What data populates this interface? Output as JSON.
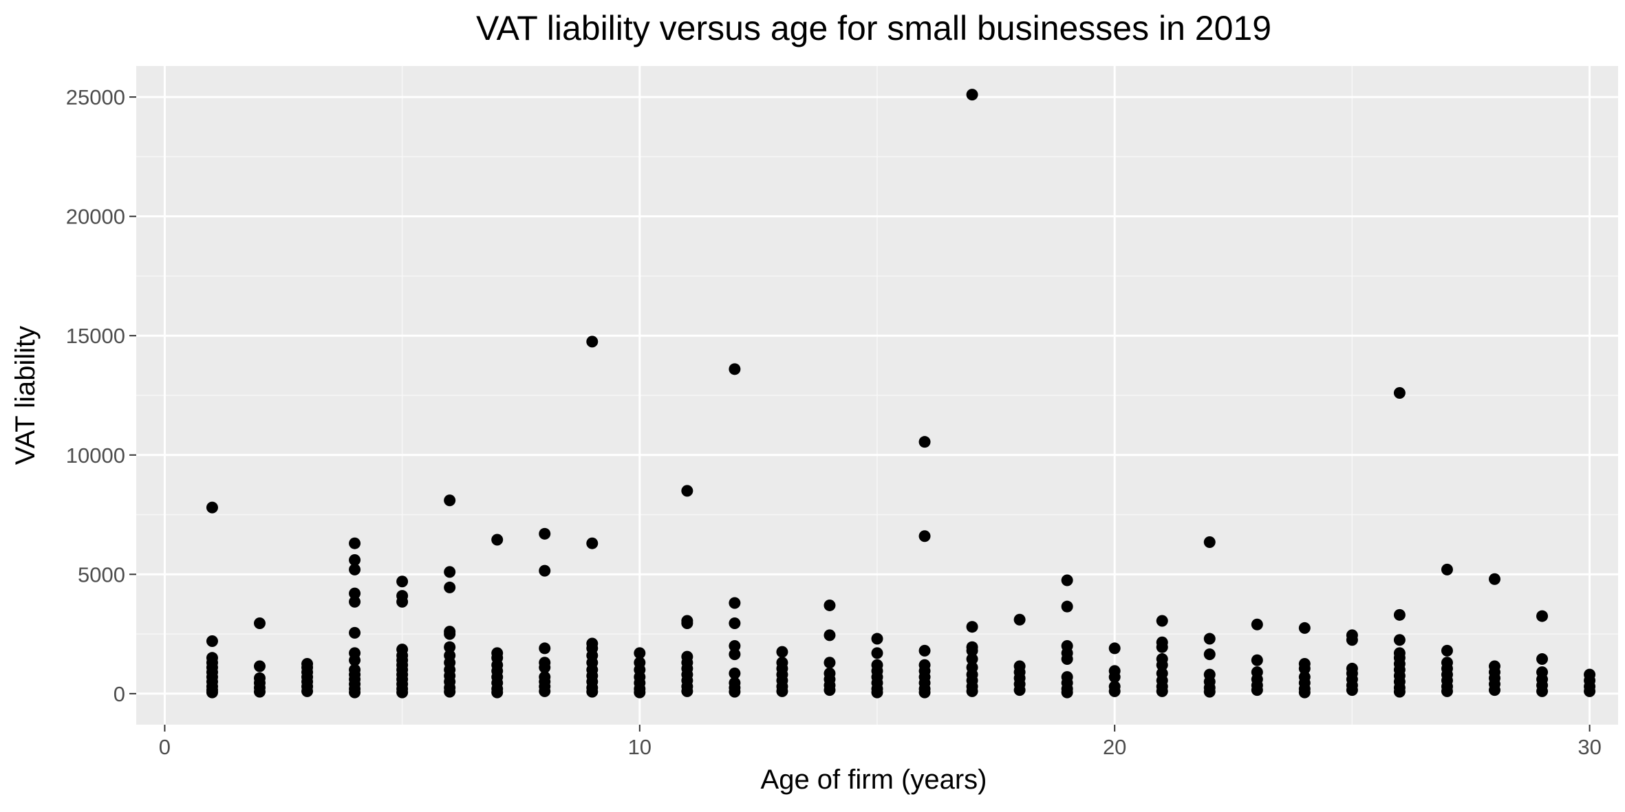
{
  "chart_data": {
    "type": "scatter",
    "title": "VAT liability versus age for small businesses in 2019",
    "xlabel": "Age of firm (years)",
    "ylabel": "VAT liability",
    "xlim": [
      -0.6,
      30.6
    ],
    "ylim": [
      -1300,
      26300
    ],
    "x_major_ticks": [
      0,
      10,
      20,
      30
    ],
    "x_tick_labels": [
      "0",
      "10",
      "20",
      "30"
    ],
    "x_minor_ticks": [
      5,
      15,
      25
    ],
    "y_major_ticks": [
      0,
      5000,
      10000,
      15000,
      20000,
      25000
    ],
    "y_tick_labels": [
      "0",
      "5000",
      "10000",
      "15000",
      "20000",
      "25000"
    ],
    "y_minor_ticks": [
      2500,
      7500,
      12500,
      17500,
      22500
    ],
    "grid": true,
    "colors": {
      "panel_background": "#ebebeb",
      "grid_major": "#ffffff",
      "grid_minor": "#f7f7f7",
      "point": "#000000",
      "tick_mark": "#333333",
      "tick_label": "#4d4d4d"
    },
    "series": [
      {
        "name": "firms",
        "points": [
          {
            "x": 1,
            "y": 7800
          },
          {
            "x": 1,
            "y": 2200
          },
          {
            "x": 1,
            "y": 1500
          },
          {
            "x": 1,
            "y": 1300
          },
          {
            "x": 1,
            "y": 1100
          },
          {
            "x": 1,
            "y": 900
          },
          {
            "x": 1,
            "y": 700
          },
          {
            "x": 1,
            "y": 500
          },
          {
            "x": 1,
            "y": 300
          },
          {
            "x": 1,
            "y": 150
          },
          {
            "x": 1,
            "y": 50
          },
          {
            "x": 2,
            "y": 2950
          },
          {
            "x": 2,
            "y": 1150
          },
          {
            "x": 2,
            "y": 650
          },
          {
            "x": 2,
            "y": 450
          },
          {
            "x": 2,
            "y": 250
          },
          {
            "x": 2,
            "y": 80
          },
          {
            "x": 3,
            "y": 1250
          },
          {
            "x": 3,
            "y": 1100
          },
          {
            "x": 3,
            "y": 900
          },
          {
            "x": 3,
            "y": 700
          },
          {
            "x": 3,
            "y": 500
          },
          {
            "x": 3,
            "y": 300
          },
          {
            "x": 3,
            "y": 100
          },
          {
            "x": 4,
            "y": 6300
          },
          {
            "x": 4,
            "y": 5600
          },
          {
            "x": 4,
            "y": 5200
          },
          {
            "x": 4,
            "y": 4200
          },
          {
            "x": 4,
            "y": 3850
          },
          {
            "x": 4,
            "y": 2550
          },
          {
            "x": 4,
            "y": 1700
          },
          {
            "x": 4,
            "y": 1400
          },
          {
            "x": 4,
            "y": 1000
          },
          {
            "x": 4,
            "y": 800
          },
          {
            "x": 4,
            "y": 600
          },
          {
            "x": 4,
            "y": 400
          },
          {
            "x": 4,
            "y": 200
          },
          {
            "x": 4,
            "y": 50
          },
          {
            "x": 5,
            "y": 4700
          },
          {
            "x": 5,
            "y": 4100
          },
          {
            "x": 5,
            "y": 3850
          },
          {
            "x": 5,
            "y": 1850
          },
          {
            "x": 5,
            "y": 1600
          },
          {
            "x": 5,
            "y": 1400
          },
          {
            "x": 5,
            "y": 1200
          },
          {
            "x": 5,
            "y": 1000
          },
          {
            "x": 5,
            "y": 800
          },
          {
            "x": 5,
            "y": 600
          },
          {
            "x": 5,
            "y": 400
          },
          {
            "x": 5,
            "y": 200
          },
          {
            "x": 5,
            "y": 50
          },
          {
            "x": 6,
            "y": 8100
          },
          {
            "x": 6,
            "y": 5100
          },
          {
            "x": 6,
            "y": 4450
          },
          {
            "x": 6,
            "y": 2600
          },
          {
            "x": 6,
            "y": 2500
          },
          {
            "x": 6,
            "y": 1950
          },
          {
            "x": 6,
            "y": 1600
          },
          {
            "x": 6,
            "y": 1300
          },
          {
            "x": 6,
            "y": 1000
          },
          {
            "x": 6,
            "y": 750
          },
          {
            "x": 6,
            "y": 500
          },
          {
            "x": 6,
            "y": 250
          },
          {
            "x": 6,
            "y": 80
          },
          {
            "x": 7,
            "y": 6450
          },
          {
            "x": 7,
            "y": 1700
          },
          {
            "x": 7,
            "y": 1500
          },
          {
            "x": 7,
            "y": 1200
          },
          {
            "x": 7,
            "y": 950
          },
          {
            "x": 7,
            "y": 700
          },
          {
            "x": 7,
            "y": 450
          },
          {
            "x": 7,
            "y": 200
          },
          {
            "x": 7,
            "y": 50
          },
          {
            "x": 8,
            "y": 6700
          },
          {
            "x": 8,
            "y": 5150
          },
          {
            "x": 8,
            "y": 1900
          },
          {
            "x": 8,
            "y": 1300
          },
          {
            "x": 8,
            "y": 1100
          },
          {
            "x": 8,
            "y": 700
          },
          {
            "x": 8,
            "y": 500
          },
          {
            "x": 8,
            "y": 300
          },
          {
            "x": 8,
            "y": 100
          },
          {
            "x": 9,
            "y": 14750
          },
          {
            "x": 9,
            "y": 6300
          },
          {
            "x": 9,
            "y": 2100
          },
          {
            "x": 9,
            "y": 1900
          },
          {
            "x": 9,
            "y": 1600
          },
          {
            "x": 9,
            "y": 1300
          },
          {
            "x": 9,
            "y": 1000
          },
          {
            "x": 9,
            "y": 750
          },
          {
            "x": 9,
            "y": 500
          },
          {
            "x": 9,
            "y": 250
          },
          {
            "x": 9,
            "y": 80
          },
          {
            "x": 10,
            "y": 1700
          },
          {
            "x": 10,
            "y": 1300
          },
          {
            "x": 10,
            "y": 1000
          },
          {
            "x": 10,
            "y": 700
          },
          {
            "x": 10,
            "y": 450
          },
          {
            "x": 10,
            "y": 200
          },
          {
            "x": 10,
            "y": 50
          },
          {
            "x": 11,
            "y": 8500
          },
          {
            "x": 11,
            "y": 3050
          },
          {
            "x": 11,
            "y": 2950
          },
          {
            "x": 11,
            "y": 1550
          },
          {
            "x": 11,
            "y": 1300
          },
          {
            "x": 11,
            "y": 1050
          },
          {
            "x": 11,
            "y": 800
          },
          {
            "x": 11,
            "y": 550
          },
          {
            "x": 11,
            "y": 300
          },
          {
            "x": 11,
            "y": 100
          },
          {
            "x": 12,
            "y": 13600
          },
          {
            "x": 12,
            "y": 3800
          },
          {
            "x": 12,
            "y": 2950
          },
          {
            "x": 12,
            "y": 2000
          },
          {
            "x": 12,
            "y": 1650
          },
          {
            "x": 12,
            "y": 850
          },
          {
            "x": 12,
            "y": 450
          },
          {
            "x": 12,
            "y": 250
          },
          {
            "x": 12,
            "y": 80
          },
          {
            "x": 13,
            "y": 1750
          },
          {
            "x": 13,
            "y": 1300
          },
          {
            "x": 13,
            "y": 1050
          },
          {
            "x": 13,
            "y": 800
          },
          {
            "x": 13,
            "y": 550
          },
          {
            "x": 13,
            "y": 300
          },
          {
            "x": 13,
            "y": 100
          },
          {
            "x": 14,
            "y": 3700
          },
          {
            "x": 14,
            "y": 2450
          },
          {
            "x": 14,
            "y": 1300
          },
          {
            "x": 14,
            "y": 850
          },
          {
            "x": 14,
            "y": 600
          },
          {
            "x": 14,
            "y": 350
          },
          {
            "x": 14,
            "y": 150
          },
          {
            "x": 15,
            "y": 2300
          },
          {
            "x": 15,
            "y": 1700
          },
          {
            "x": 15,
            "y": 1200
          },
          {
            "x": 15,
            "y": 950
          },
          {
            "x": 15,
            "y": 700
          },
          {
            "x": 15,
            "y": 450
          },
          {
            "x": 15,
            "y": 200
          },
          {
            "x": 15,
            "y": 50
          },
          {
            "x": 16,
            "y": 10550
          },
          {
            "x": 16,
            "y": 6600
          },
          {
            "x": 16,
            "y": 1800
          },
          {
            "x": 16,
            "y": 1200
          },
          {
            "x": 16,
            "y": 950
          },
          {
            "x": 16,
            "y": 700
          },
          {
            "x": 16,
            "y": 450
          },
          {
            "x": 16,
            "y": 200
          },
          {
            "x": 16,
            "y": 50
          },
          {
            "x": 17,
            "y": 25100
          },
          {
            "x": 17,
            "y": 2800
          },
          {
            "x": 17,
            "y": 1950
          },
          {
            "x": 17,
            "y": 1800
          },
          {
            "x": 17,
            "y": 1450
          },
          {
            "x": 17,
            "y": 1100
          },
          {
            "x": 17,
            "y": 800
          },
          {
            "x": 17,
            "y": 550
          },
          {
            "x": 17,
            "y": 300
          },
          {
            "x": 17,
            "y": 100
          },
          {
            "x": 18,
            "y": 3100
          },
          {
            "x": 18,
            "y": 1150
          },
          {
            "x": 18,
            "y": 900
          },
          {
            "x": 18,
            "y": 650
          },
          {
            "x": 18,
            "y": 400
          },
          {
            "x": 18,
            "y": 150
          },
          {
            "x": 19,
            "y": 4750
          },
          {
            "x": 19,
            "y": 3650
          },
          {
            "x": 19,
            "y": 2000
          },
          {
            "x": 19,
            "y": 1700
          },
          {
            "x": 19,
            "y": 1450
          },
          {
            "x": 19,
            "y": 700
          },
          {
            "x": 19,
            "y": 450
          },
          {
            "x": 19,
            "y": 200
          },
          {
            "x": 19,
            "y": 50
          },
          {
            "x": 20,
            "y": 1900
          },
          {
            "x": 20,
            "y": 950
          },
          {
            "x": 20,
            "y": 700
          },
          {
            "x": 20,
            "y": 300
          },
          {
            "x": 20,
            "y": 100
          },
          {
            "x": 21,
            "y": 3050
          },
          {
            "x": 21,
            "y": 2150
          },
          {
            "x": 21,
            "y": 1950
          },
          {
            "x": 21,
            "y": 1450
          },
          {
            "x": 21,
            "y": 1200
          },
          {
            "x": 21,
            "y": 850
          },
          {
            "x": 21,
            "y": 550
          },
          {
            "x": 21,
            "y": 300
          },
          {
            "x": 21,
            "y": 100
          },
          {
            "x": 22,
            "y": 6350
          },
          {
            "x": 22,
            "y": 2300
          },
          {
            "x": 22,
            "y": 1650
          },
          {
            "x": 22,
            "y": 800
          },
          {
            "x": 22,
            "y": 500
          },
          {
            "x": 22,
            "y": 250
          },
          {
            "x": 22,
            "y": 80
          },
          {
            "x": 23,
            "y": 2900
          },
          {
            "x": 23,
            "y": 1400
          },
          {
            "x": 23,
            "y": 900
          },
          {
            "x": 23,
            "y": 600
          },
          {
            "x": 23,
            "y": 350
          },
          {
            "x": 23,
            "y": 150
          },
          {
            "x": 24,
            "y": 2750
          },
          {
            "x": 24,
            "y": 1250
          },
          {
            "x": 24,
            "y": 1050
          },
          {
            "x": 24,
            "y": 700
          },
          {
            "x": 24,
            "y": 450
          },
          {
            "x": 24,
            "y": 200
          },
          {
            "x": 24,
            "y": 50
          },
          {
            "x": 25,
            "y": 2450
          },
          {
            "x": 25,
            "y": 2250
          },
          {
            "x": 25,
            "y": 1050
          },
          {
            "x": 25,
            "y": 850
          },
          {
            "x": 25,
            "y": 600
          },
          {
            "x": 25,
            "y": 350
          },
          {
            "x": 25,
            "y": 150
          },
          {
            "x": 26,
            "y": 12600
          },
          {
            "x": 26,
            "y": 3300
          },
          {
            "x": 26,
            "y": 2250
          },
          {
            "x": 26,
            "y": 1700
          },
          {
            "x": 26,
            "y": 1500
          },
          {
            "x": 26,
            "y": 1250
          },
          {
            "x": 26,
            "y": 1000
          },
          {
            "x": 26,
            "y": 750
          },
          {
            "x": 26,
            "y": 500
          },
          {
            "x": 26,
            "y": 250
          },
          {
            "x": 26,
            "y": 80
          },
          {
            "x": 27,
            "y": 5200
          },
          {
            "x": 27,
            "y": 1800
          },
          {
            "x": 27,
            "y": 1300
          },
          {
            "x": 27,
            "y": 1050
          },
          {
            "x": 27,
            "y": 800
          },
          {
            "x": 27,
            "y": 550
          },
          {
            "x": 27,
            "y": 300
          },
          {
            "x": 27,
            "y": 100
          },
          {
            "x": 28,
            "y": 4800
          },
          {
            "x": 28,
            "y": 1150
          },
          {
            "x": 28,
            "y": 900
          },
          {
            "x": 28,
            "y": 650
          },
          {
            "x": 28,
            "y": 400
          },
          {
            "x": 28,
            "y": 150
          },
          {
            "x": 29,
            "y": 3250
          },
          {
            "x": 29,
            "y": 1450
          },
          {
            "x": 29,
            "y": 900
          },
          {
            "x": 29,
            "y": 600
          },
          {
            "x": 29,
            "y": 350
          },
          {
            "x": 29,
            "y": 100
          },
          {
            "x": 30,
            "y": 800
          },
          {
            "x": 30,
            "y": 550
          },
          {
            "x": 30,
            "y": 300
          },
          {
            "x": 30,
            "y": 100
          }
        ]
      }
    ]
  }
}
